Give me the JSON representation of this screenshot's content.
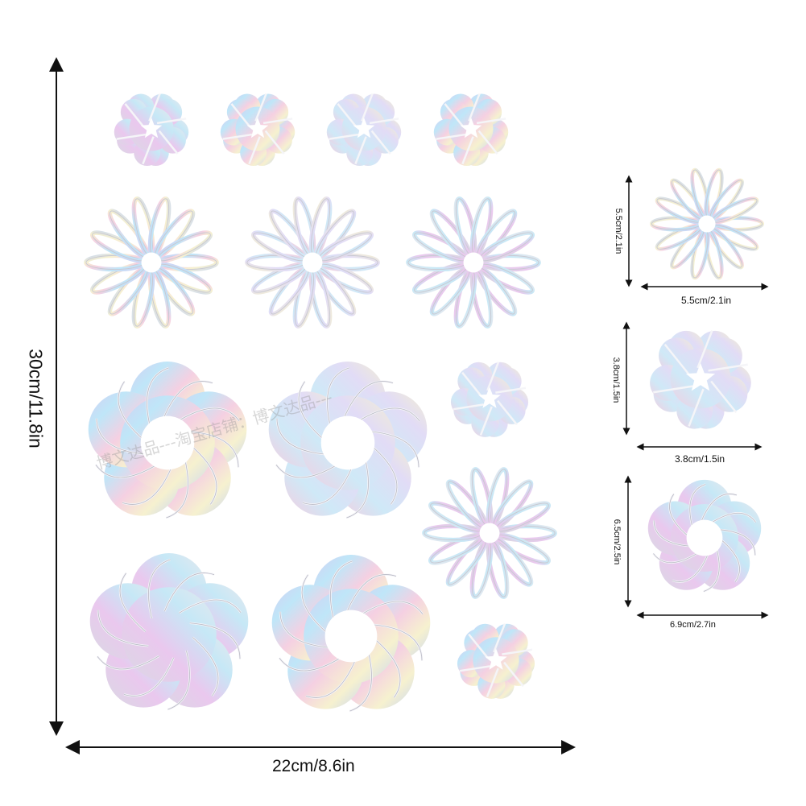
{
  "dimensions": {
    "overall_height": "30cm/11.8in",
    "overall_width": "22cm/8.6in",
    "daisy_height": "5.5cm/2.1in",
    "daisy_width": "5.5cm/2.1in",
    "heart_flower_height": "3.8cm/1.5in",
    "heart_flower_width": "3.8cm/1.5in",
    "round_flower_height": "6.5cm/2.5in",
    "round_flower_width": "6.9cm/2.7in"
  },
  "watermark": "博文达品---淘宝店铺：博文达品---",
  "colors": {
    "background": "#ffffff",
    "arrow": "#111111",
    "holo_1": "#c9c3f0",
    "holo_2": "#b8e3f7",
    "holo_3": "#f3c6dc",
    "holo_4": "#f7f0c4",
    "holo_5": "#dcdce4"
  },
  "sticker_shapes": [
    "heart-flower",
    "daisy",
    "round-flower"
  ]
}
